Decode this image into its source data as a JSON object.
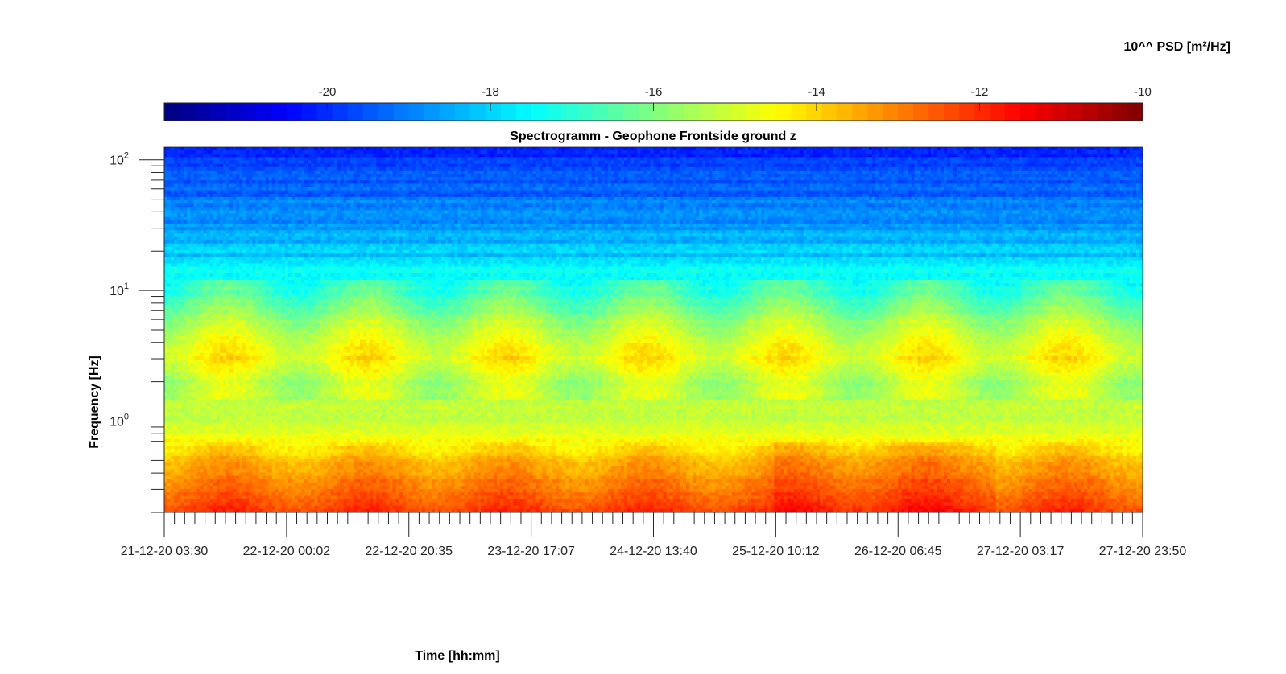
{
  "chart_data": {
    "type": "heatmap",
    "title": "Spectrogramm - Geophone Frontside ground z",
    "xlabel": "Time [hh:mm]",
    "ylabel": "Frequency [Hz]",
    "x_tick_labels": [
      "21-12-20 03:30",
      "22-12-20 00:02",
      "22-12-20 20:35",
      "23-12-20 17:07",
      "24-12-20 13:40",
      "25-12-20 10:12",
      "26-12-20 06:45",
      "27-12-20 03:17",
      "27-12-20 23:50"
    ],
    "x_range": [
      "21-12-20 03:30",
      "27-12-20 23:50"
    ],
    "y_scale": "log",
    "y_range": [
      0.2,
      125
    ],
    "y_ticks": [
      {
        "base": "10",
        "exp": "0",
        "value": 1
      },
      {
        "base": "10",
        "exp": "1",
        "value": 10
      },
      {
        "base": "10",
        "exp": "2",
        "value": 100
      }
    ],
    "colorbar": {
      "label": "10^^ PSD [m²/Hz]",
      "colormap": "jet",
      "range": [
        -22,
        -10
      ],
      "ticks": [
        "-20",
        "-18",
        "-16",
        "-14",
        "-12",
        "-10"
      ]
    },
    "psd_profile_by_frequency": [
      {
        "freq_hz": 0.2,
        "log_psd": -12.2
      },
      {
        "freq_hz": 0.3,
        "log_psd": -12.8
      },
      {
        "freq_hz": 0.5,
        "log_psd": -13.6
      },
      {
        "freq_hz": 0.7,
        "log_psd": -14.4
      },
      {
        "freq_hz": 1.0,
        "log_psd": -15.2
      },
      {
        "freq_hz": 2.0,
        "log_psd": -15.3
      },
      {
        "freq_hz": 3.0,
        "log_psd": -14.5
      },
      {
        "freq_hz": 5.0,
        "log_psd": -15.2
      },
      {
        "freq_hz": 8.0,
        "log_psd": -16.3
      },
      {
        "freq_hz": 12.0,
        "log_psd": -17.2
      },
      {
        "freq_hz": 20.0,
        "log_psd": -18.2
      },
      {
        "freq_hz": 40.0,
        "log_psd": -19.0
      },
      {
        "freq_hz": 80.0,
        "log_psd": -19.5
      },
      {
        "freq_hz": 125.0,
        "log_psd": -20.3
      }
    ]
  }
}
